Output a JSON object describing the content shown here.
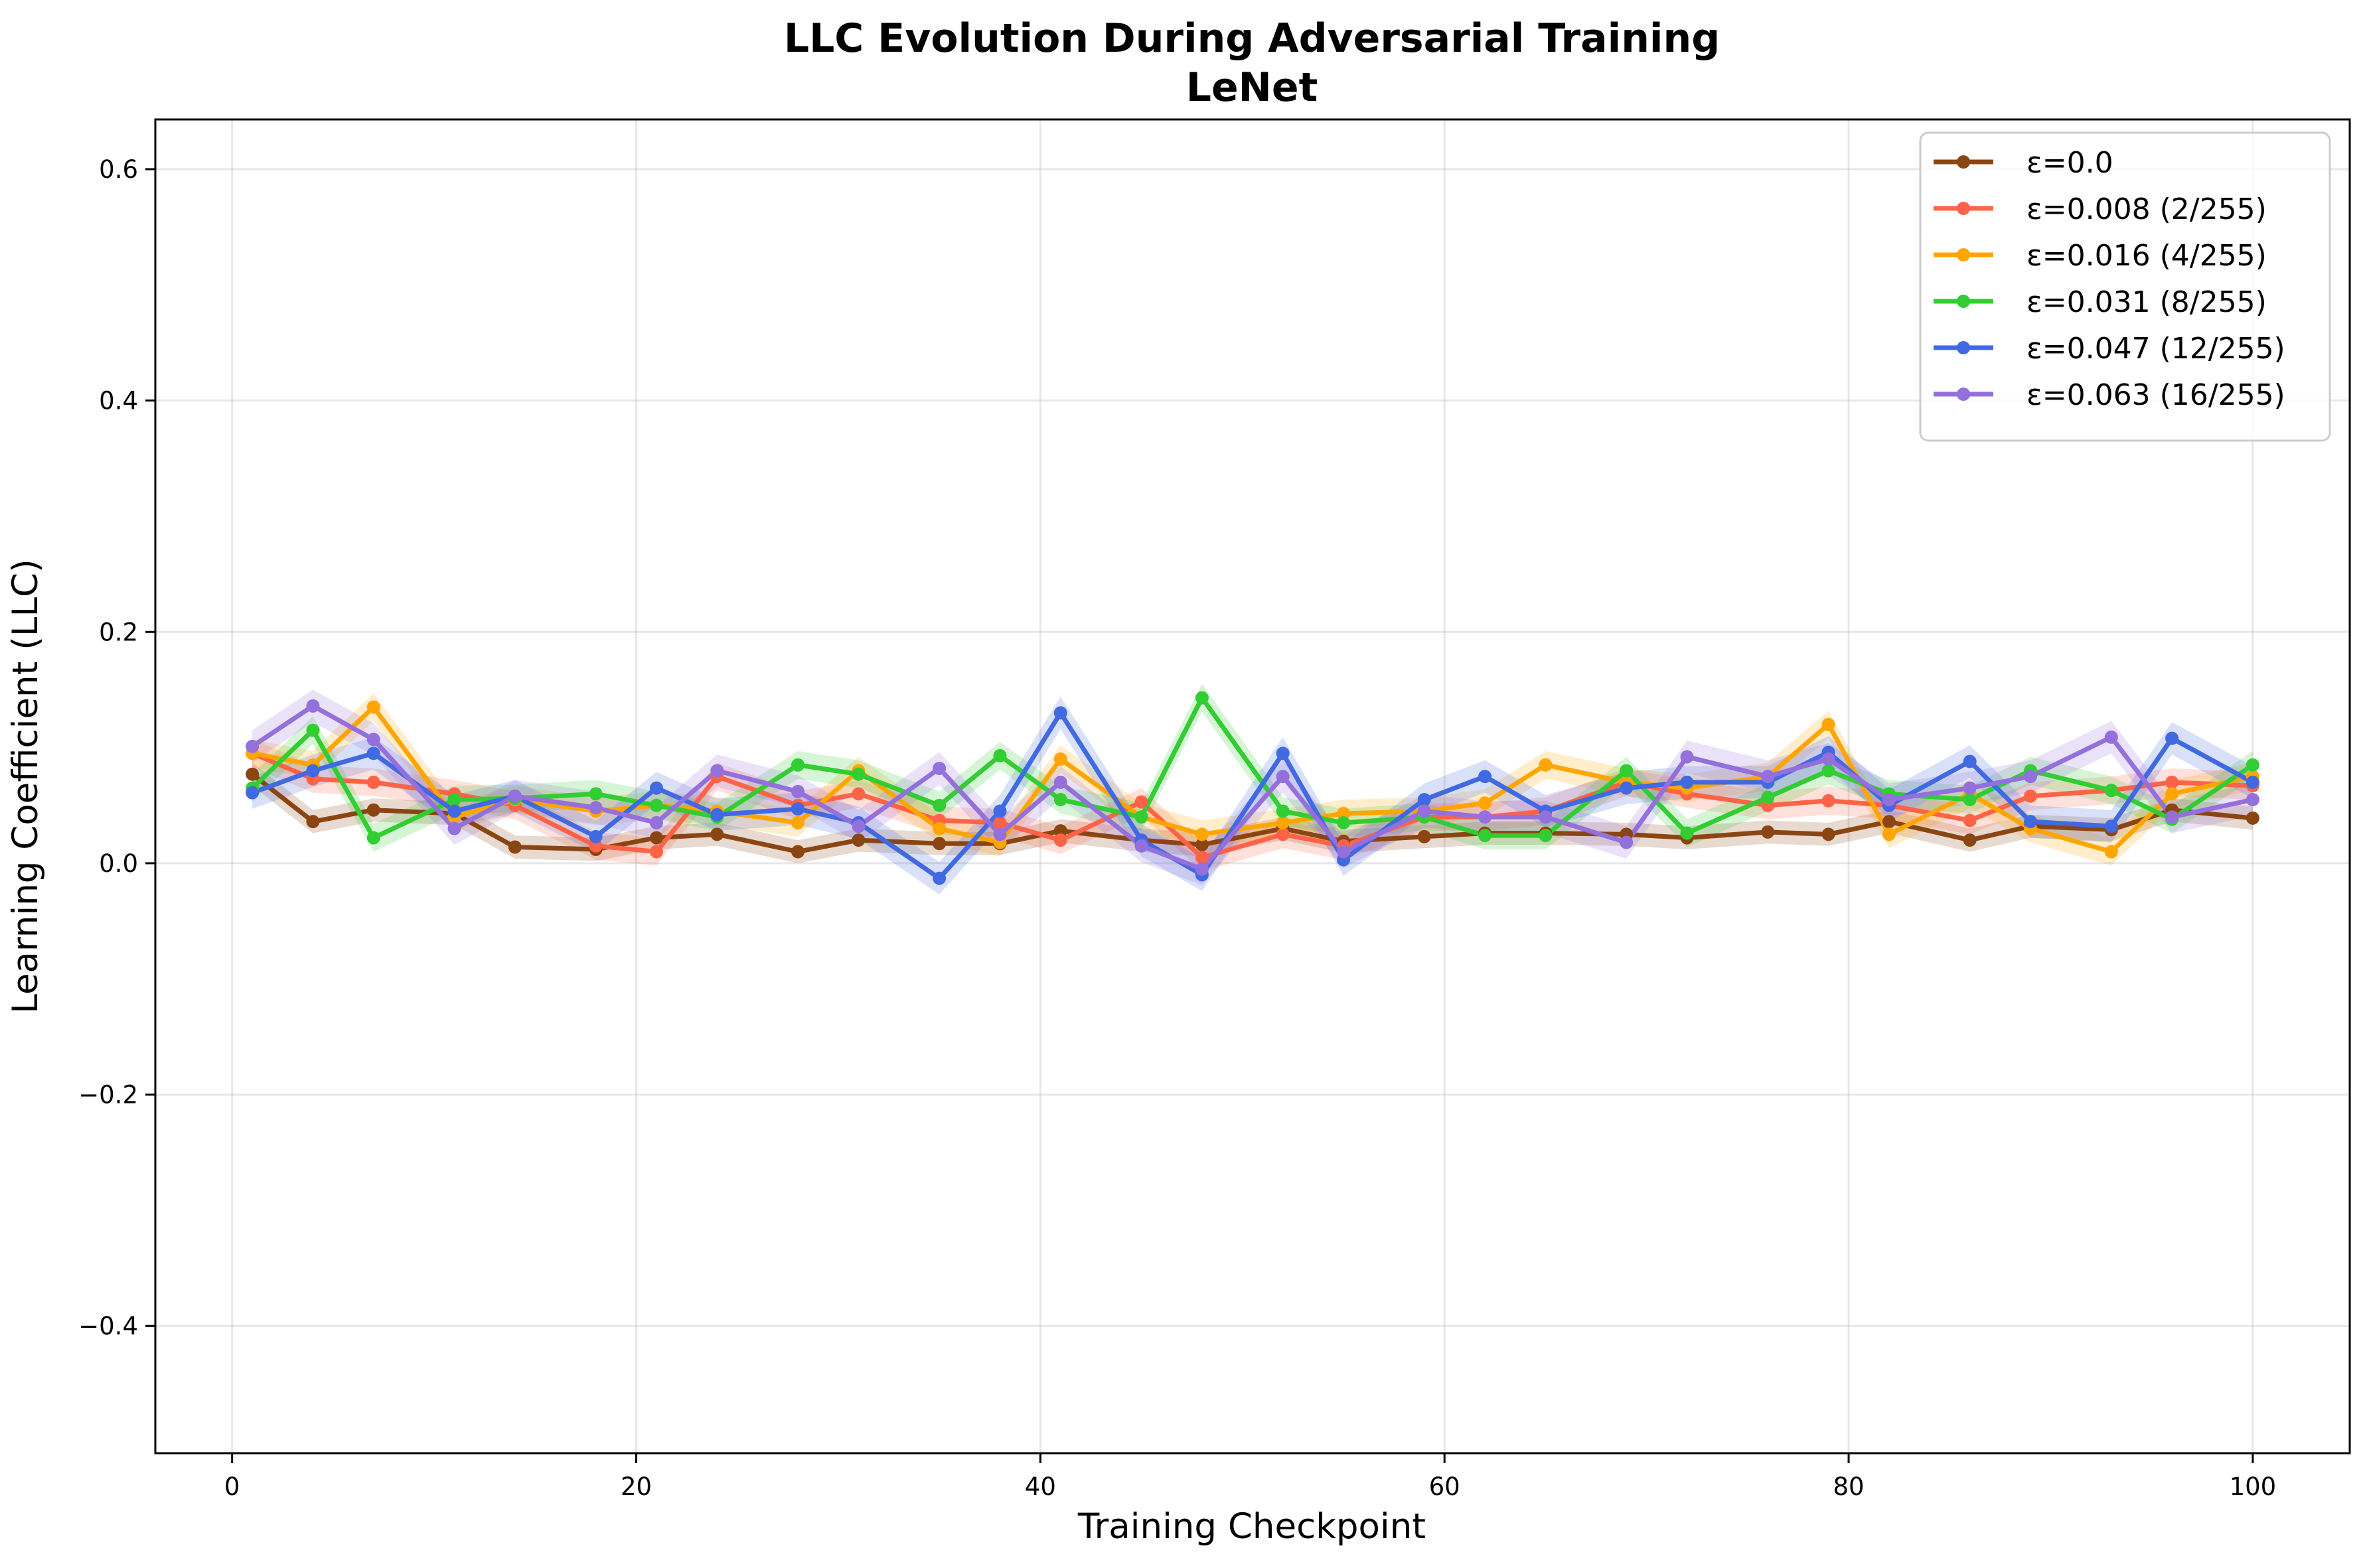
{
  "chart_data": {
    "type": "line",
    "title": "LLC Evolution During Adversarial Training",
    "subtitle": "LeNet",
    "xlabel": "Training Checkpoint",
    "ylabel": "Learning Coefficient (LLC)",
    "xlim": [
      -3.8,
      104.8
    ],
    "ylim": [
      -0.51,
      0.643
    ],
    "xticks": [
      0,
      20,
      40,
      60,
      80,
      100
    ],
    "yticks": [
      -0.4,
      -0.2,
      0.0,
      0.2,
      0.4,
      0.6
    ],
    "xtick_labels": [
      "0",
      "20",
      "40",
      "60",
      "80",
      "100"
    ],
    "ytick_labels": [
      "−0.4",
      "−0.2",
      "0.0",
      "0.2",
      "0.4",
      "0.6"
    ],
    "grid": true,
    "legend_position": "top-right",
    "x": [
      1,
      4,
      7,
      11,
      14,
      18,
      21,
      24,
      28,
      31,
      35,
      38,
      41,
      45,
      48,
      52,
      55,
      59,
      62,
      65,
      69,
      72,
      76,
      79,
      82,
      86,
      89,
      93,
      96,
      100
    ],
    "series": [
      {
        "name": "ε=0.0",
        "color": "#8B4513",
        "values": [
          0.077,
          0.036,
          0.046,
          0.043,
          0.014,
          0.012,
          0.022,
          0.025,
          0.01,
          0.02,
          0.017,
          0.017,
          0.028,
          0.02,
          0.016,
          0.03,
          0.019,
          0.023,
          0.026,
          0.026,
          0.025,
          0.022,
          0.027,
          0.025,
          0.036,
          0.02,
          0.032,
          0.029,
          0.046,
          0.039
        ],
        "band": 0.01
      },
      {
        "name": "ε=0.008 (2/255)",
        "color": "#FF6347",
        "values": [
          0.095,
          0.073,
          0.07,
          0.06,
          0.05,
          0.015,
          0.01,
          0.075,
          0.05,
          0.06,
          0.037,
          0.035,
          0.02,
          0.053,
          0.005,
          0.025,
          0.015,
          0.04,
          0.04,
          0.045,
          0.07,
          0.06,
          0.05,
          0.054,
          0.05,
          0.037,
          0.058,
          0.063,
          0.07,
          0.067
        ],
        "band": 0.012
      },
      {
        "name": "ε=0.016 (4/255)",
        "color": "#FFA500",
        "values": [
          0.095,
          0.085,
          0.135,
          0.04,
          0.055,
          0.045,
          0.05,
          0.045,
          0.035,
          0.08,
          0.03,
          0.018,
          0.09,
          0.04,
          0.025,
          0.035,
          0.043,
          0.045,
          0.052,
          0.085,
          0.07,
          0.065,
          0.075,
          0.12,
          0.025,
          0.06,
          0.03,
          0.01,
          0.06,
          0.075
        ],
        "band": 0.012
      },
      {
        "name": "ε=0.031 (8/255)",
        "color": "#32CD32",
        "values": [
          0.065,
          0.115,
          0.022,
          0.055,
          0.056,
          0.06,
          0.05,
          0.04,
          0.085,
          0.077,
          0.05,
          0.093,
          0.055,
          0.04,
          0.143,
          0.045,
          0.035,
          0.04,
          0.024,
          0.024,
          0.08,
          0.026,
          0.057,
          0.08,
          0.06,
          0.055,
          0.08,
          0.063,
          0.038,
          0.085
        ],
        "band": 0.012
      },
      {
        "name": "ε=0.047 (12/255)",
        "color": "#4169E1",
        "values": [
          0.061,
          0.08,
          0.095,
          0.045,
          0.058,
          0.023,
          0.065,
          0.042,
          0.047,
          0.035,
          -0.013,
          0.045,
          0.13,
          0.02,
          -0.01,
          0.095,
          0.003,
          0.055,
          0.075,
          0.045,
          0.065,
          0.07,
          0.07,
          0.096,
          0.05,
          0.088,
          0.036,
          0.032,
          0.108,
          0.07
        ],
        "band": 0.014
      },
      {
        "name": "ε=0.063 (16/255)",
        "color": "#9370DB",
        "values": [
          0.101,
          0.136,
          0.107,
          0.03,
          0.058,
          0.048,
          0.035,
          0.08,
          0.062,
          0.032,
          0.082,
          0.025,
          0.07,
          0.015,
          -0.005,
          0.075,
          0.01,
          0.045,
          0.04,
          0.04,
          0.018,
          0.092,
          0.075,
          0.09,
          0.055,
          0.065,
          0.075,
          0.109,
          0.04,
          0.055
        ],
        "band": 0.014
      }
    ]
  }
}
